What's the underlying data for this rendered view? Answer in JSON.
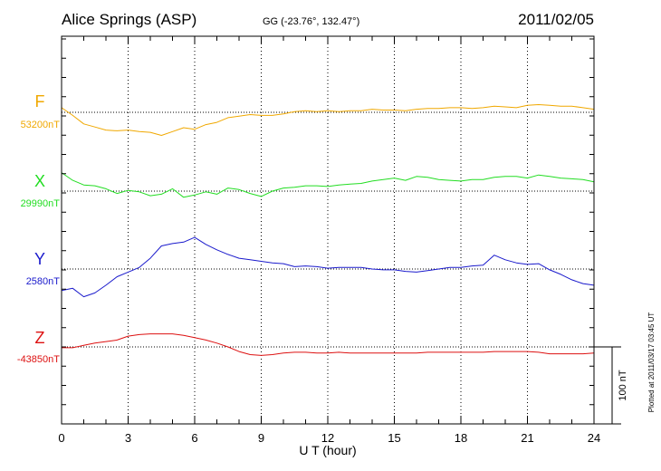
{
  "header": {
    "station": "Alice Springs (ASP)",
    "coords": "GG (-23.76°, 132.47°)",
    "date": "2011/02/05"
  },
  "footer": {
    "plotted": "Plotted at 2011/03/17 03:45 UT"
  },
  "colors": {
    "F": "#f0a800",
    "X": "#22dd22",
    "Y": "#1a1acc",
    "Z": "#dd1111"
  },
  "chart_data": {
    "type": "line",
    "title": "Alice Springs (ASP)",
    "xlabel": "U T (hour)",
    "ylabel": "",
    "xlim": [
      0,
      24
    ],
    "x_ticks": [
      "0",
      "3",
      "6",
      "9",
      "12",
      "15",
      "18",
      "21",
      "24"
    ],
    "scale_bar": {
      "label": "100 nT",
      "value_nT": 100
    },
    "series": [
      {
        "name": "F",
        "baseline_label": "53200nT",
        "baseline": 53200,
        "x": [
          0,
          0.5,
          1,
          1.5,
          2,
          2.5,
          3,
          3.5,
          4,
          4.5,
          5,
          5.5,
          6,
          6.5,
          7,
          7.5,
          8,
          8.5,
          9,
          9.5,
          10,
          10.5,
          11,
          11.5,
          12,
          12.5,
          13,
          13.5,
          14,
          14.5,
          15,
          15.5,
          16,
          16.5,
          17,
          17.5,
          18,
          18.5,
          19,
          19.5,
          20,
          20.5,
          21,
          21.5,
          22,
          22.5,
          23,
          23.5,
          24
        ],
        "values": [
          53206,
          53196,
          53185,
          53181,
          53177,
          53176,
          53177,
          53175,
          53174,
          53170,
          53175,
          53180,
          53178,
          53184,
          53187,
          53193,
          53195,
          53197,
          53196,
          53196,
          53198,
          53201,
          53202,
          53201,
          53202,
          53201,
          53202,
          53202,
          53204,
          53203,
          53203,
          53202,
          53204,
          53205,
          53205,
          53206,
          53206,
          53205,
          53206,
          53208,
          53207,
          53206,
          53209,
          53210,
          53209,
          53208,
          53208,
          53206,
          53204
        ]
      },
      {
        "name": "X",
        "baseline_label": "29990nT",
        "baseline": 29990,
        "x": [
          0,
          0.5,
          1,
          1.5,
          2,
          2.5,
          3,
          3.5,
          4,
          4.5,
          5,
          5.5,
          6,
          6.5,
          7,
          7.5,
          8,
          8.5,
          9,
          9.5,
          10,
          10.5,
          11,
          11.5,
          12,
          12.5,
          13,
          13.5,
          14,
          14.5,
          15,
          15.5,
          16,
          16.5,
          17,
          17.5,
          18,
          18.5,
          19,
          19.5,
          20,
          20.5,
          21,
          21.5,
          22,
          22.5,
          23,
          23.5,
          24
        ],
        "values": [
          30014,
          30004,
          29998,
          29997,
          29993,
          29987,
          29991,
          29989,
          29984,
          29986,
          29993,
          29982,
          29985,
          29989,
          29986,
          29994,
          29992,
          29987,
          29983,
          29990,
          29994,
          29995,
          29997,
          29997,
          29996,
          29998,
          29999,
          30000,
          30003,
          30005,
          30007,
          30004,
          30009,
          30008,
          30005,
          30004,
          30003,
          30005,
          30005,
          30008,
          30009,
          30009,
          30007,
          30011,
          30009,
          30007,
          30006,
          30005,
          30002
        ]
      },
      {
        "name": "Y",
        "baseline_label": "2580nT",
        "baseline": 2580,
        "x": [
          0,
          0.5,
          1,
          1.5,
          2,
          2.5,
          3,
          3.5,
          4,
          4.5,
          5,
          5.5,
          6,
          6.5,
          7,
          7.5,
          8,
          8.5,
          9,
          9.5,
          10,
          10.5,
          11,
          11.5,
          12,
          12.5,
          13,
          13.5,
          14,
          14.5,
          15,
          15.5,
          16,
          16.5,
          17,
          17.5,
          18,
          18.5,
          19,
          19.5,
          20,
          20.5,
          21,
          21.5,
          22,
          22.5,
          23,
          23.5,
          24
        ],
        "values": [
          2552,
          2555,
          2544,
          2549,
          2559,
          2570,
          2576,
          2582,
          2594,
          2610,
          2613,
          2615,
          2621,
          2612,
          2605,
          2599,
          2594,
          2592,
          2590,
          2588,
          2587,
          2583,
          2584,
          2583,
          2581,
          2582,
          2582,
          2582,
          2580,
          2579,
          2579,
          2577,
          2576,
          2578,
          2580,
          2582,
          2582,
          2584,
          2585,
          2598,
          2592,
          2588,
          2586,
          2587,
          2579,
          2573,
          2566,
          2561,
          2559
        ]
      },
      {
        "name": "Z",
        "baseline_label": "-43850nT",
        "baseline": -43850,
        "x": [
          0,
          0.5,
          1,
          1.5,
          2,
          2.5,
          3,
          3.5,
          4,
          4.5,
          5,
          5.5,
          6,
          6.5,
          7,
          7.5,
          8,
          8.5,
          9,
          9.5,
          10,
          10.5,
          11,
          11.5,
          12,
          12.5,
          13,
          13.5,
          14,
          14.5,
          15,
          15.5,
          16,
          16.5,
          17,
          17.5,
          18,
          18.5,
          19,
          19.5,
          20,
          20.5,
          21,
          21.5,
          22,
          22.5,
          23,
          23.5,
          24
        ],
        "values": [
          -43851,
          -43851,
          -43848,
          -43845,
          -43843,
          -43841,
          -43836,
          -43834,
          -43833,
          -43833,
          -43833,
          -43835,
          -43838,
          -43841,
          -43845,
          -43850,
          -43856,
          -43860,
          -43861,
          -43860,
          -43858,
          -43857,
          -43857,
          -43858,
          -43858,
          -43857,
          -43858,
          -43858,
          -43858,
          -43858,
          -43858,
          -43858,
          -43858,
          -43857,
          -43857,
          -43857,
          -43857,
          -43857,
          -43857,
          -43856,
          -43856,
          -43856,
          -43856,
          -43857,
          -43859,
          -43859,
          -43859,
          -43859,
          -43858
        ]
      }
    ]
  }
}
